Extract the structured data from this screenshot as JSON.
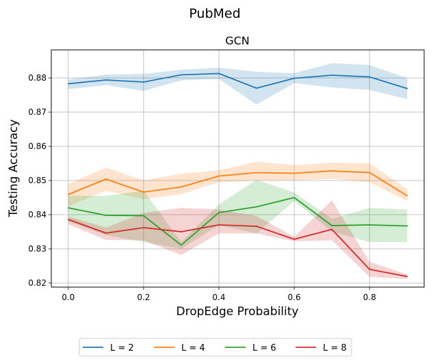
{
  "figure": {
    "suptitle": "PubMed"
  },
  "chart_data": {
    "type": "line",
    "title": "GCN",
    "xlabel": "DropEdge Probability",
    "ylabel": "Testing Accuracy",
    "xlim": [
      -0.045,
      0.945
    ],
    "ylim": [
      0.8188,
      0.8882
    ],
    "grid": true,
    "x": [
      0.0,
      0.1,
      0.2,
      0.3,
      0.4,
      0.5,
      0.6,
      0.7,
      0.8,
      0.9
    ],
    "x_ticks": [
      0.0,
      0.2,
      0.4,
      0.6,
      0.8
    ],
    "x_tick_labels": [
      "0.0",
      "0.2",
      "0.4",
      "0.6",
      "0.8"
    ],
    "y_ticks": [
      0.82,
      0.83,
      0.84,
      0.85,
      0.86,
      0.87,
      0.88
    ],
    "y_tick_labels": [
      "0.82",
      "0.83",
      "0.84",
      "0.85",
      "0.86",
      "0.87",
      "0.88"
    ],
    "legend_position": "below-center",
    "series": [
      {
        "name": "L = 2",
        "color": "#1f77b4",
        "values": [
          0.8783,
          0.8794,
          0.8788,
          0.8809,
          0.8813,
          0.877,
          0.8799,
          0.8808,
          0.8803,
          0.8769
        ],
        "lower": [
          0.8767,
          0.8779,
          0.8762,
          0.8793,
          0.8797,
          0.8722,
          0.8785,
          0.8772,
          0.8765,
          0.8738
        ],
        "upper": [
          0.8795,
          0.881,
          0.8812,
          0.8824,
          0.883,
          0.8818,
          0.8814,
          0.8843,
          0.8838,
          0.8799
        ]
      },
      {
        "name": "L = 4",
        "color": "#ff7f0e",
        "values": [
          0.8459,
          0.8504,
          0.8466,
          0.8481,
          0.8513,
          0.8523,
          0.8521,
          0.8528,
          0.8523,
          0.8455
        ],
        "lower": [
          0.8425,
          0.847,
          0.8445,
          0.846,
          0.8495,
          0.85,
          0.85,
          0.8505,
          0.8495,
          0.844
        ],
        "upper": [
          0.849,
          0.8538,
          0.85,
          0.852,
          0.853,
          0.8555,
          0.8545,
          0.8552,
          0.855,
          0.8475
        ]
      },
      {
        "name": "L = 6",
        "color": "#2ca02c",
        "values": [
          0.842,
          0.8398,
          0.8397,
          0.8311,
          0.8406,
          0.8423,
          0.845,
          0.8368,
          0.837,
          0.8367
        ],
        "lower": [
          0.838,
          0.834,
          0.832,
          0.83,
          0.837,
          0.8345,
          0.844,
          0.835,
          0.832,
          0.832
        ],
        "upper": [
          0.8455,
          0.8455,
          0.847,
          0.832,
          0.843,
          0.8502,
          0.8465,
          0.8388,
          0.842,
          0.8415
        ]
      },
      {
        "name": "L = 8",
        "color": "#d62728",
        "values": [
          0.8386,
          0.8346,
          0.8362,
          0.835,
          0.837,
          0.8366,
          0.8328,
          0.8357,
          0.824,
          0.8219
        ],
        "lower": [
          0.8372,
          0.8326,
          0.8325,
          0.8282,
          0.8345,
          0.8345,
          0.8322,
          0.8325,
          0.8218,
          0.8212
        ],
        "upper": [
          0.8395,
          0.8362,
          0.8405,
          0.842,
          0.8415,
          0.8396,
          0.8335,
          0.8442,
          0.8262,
          0.8225
        ]
      }
    ]
  }
}
